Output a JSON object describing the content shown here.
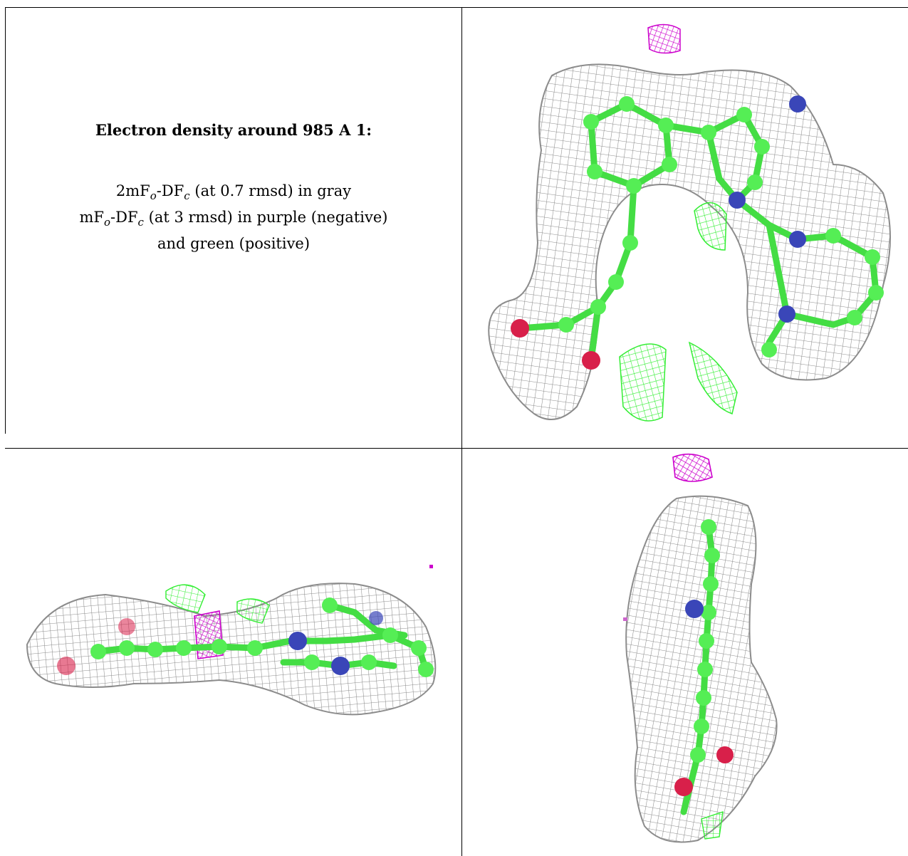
{
  "caption": {
    "title": "Electron density around 985 A 1:",
    "line1": {
      "prefix": "2mF",
      "sub1": "o",
      "mid": "-DF",
      "sub2": "c",
      "suffix": " (at 0.7 rmsd) in gray"
    },
    "line2": {
      "prefix": "mF",
      "sub1": "o",
      "mid": "-DF",
      "sub2": "c",
      "suffix": " (at 3 rmsd) in purple (negative)"
    },
    "line3": "and green (positive)"
  },
  "colors": {
    "mesh_gray": "#8c8c8c",
    "mesh_positive": "#33ee33",
    "mesh_negative": "#cc00cc",
    "carbon": "#55ee55",
    "nitrogen": "#3a46b8",
    "oxygen": "#d8204a"
  }
}
